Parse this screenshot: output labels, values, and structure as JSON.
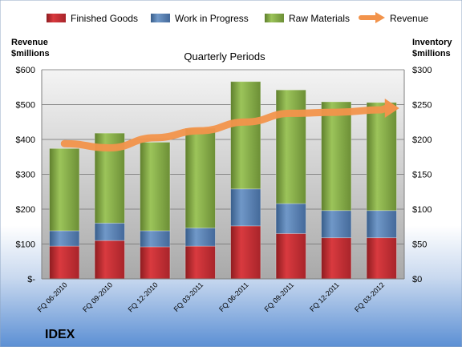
{
  "chart_data": {
    "type": "bar",
    "title": "Quarterly Periods",
    "left_axis_label": [
      "Revenue",
      "$millions"
    ],
    "right_axis_label": [
      "Inventory",
      "$millions"
    ],
    "company": "IDEX",
    "categories": [
      "FQ 06-2010",
      "FQ 09-2010",
      "FQ 12-2010",
      "FQ 03-2011",
      "FQ 06-2011",
      "FQ 09-2011",
      "FQ 12-2011",
      "FQ 03-2012"
    ],
    "left_ticks": [
      "$-",
      "$100",
      "$200",
      "$300",
      "$400",
      "$500",
      "$600"
    ],
    "right_ticks": [
      "$0",
      "$50",
      "$100",
      "$150",
      "$200",
      "$250",
      "$300"
    ],
    "left_ylim": [
      0,
      600
    ],
    "right_ylim": [
      0,
      300
    ],
    "legend_position": "top",
    "grid": true,
    "stacked": true,
    "series": [
      {
        "name": "Finished Goods",
        "axis": "right",
        "color": "#c0272d",
        "values": [
          47,
          55,
          46,
          47,
          76,
          65,
          59,
          59
        ]
      },
      {
        "name": "Work in Progress",
        "axis": "right",
        "color": "#4f81bd",
        "values": [
          22,
          25,
          23,
          26,
          53,
          43,
          39,
          39
        ]
      },
      {
        "name": "Raw Materials",
        "axis": "right",
        "color": "#8cb04a",
        "values": [
          118,
          129,
          127,
          143,
          154,
          163,
          156,
          155
        ]
      },
      {
        "name": "Revenue",
        "axis": "left",
        "type": "line",
        "color": "#f2934b",
        "values": [
          388,
          376,
          405,
          425,
          450,
          475,
          478,
          485
        ]
      }
    ]
  }
}
